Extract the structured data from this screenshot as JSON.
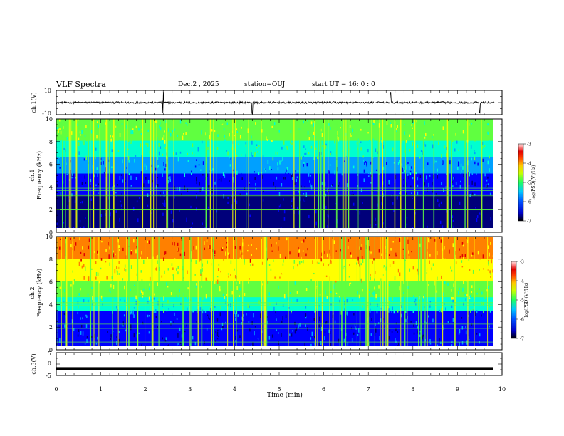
{
  "header": {
    "title": "VLF Spectra",
    "date": "Dec.2 , 2025",
    "station": "station=OUJ",
    "start": "start UT = 16: 0 : 0"
  },
  "colors": {
    "spectrogram_scale": [
      "#00007a",
      "#0000ff",
      "#00a0ff",
      "#00ffd0",
      "#60ff40",
      "#ffff00",
      "#ff8000",
      "#e00000",
      "#ffc8c8",
      "#ffffff"
    ]
  },
  "chart_data": [
    {
      "type": "line",
      "panel": "waveform-ch1",
      "ylabel": "ch.1(V)",
      "yticks": [
        "10",
        "-10"
      ],
      "ylim": [
        -10,
        10
      ],
      "xlim": [
        0,
        10
      ],
      "description_values": {
        "baseline": 0,
        "spike_times_min": [
          2.4,
          4.4,
          7.5,
          9.5
        ]
      }
    },
    {
      "type": "heatmap",
      "panel": "spectrogram-ch1",
      "ylabel_line1": "ch.1",
      "ylabel_line2": "Frequency (kHz)",
      "yticks": [
        "0",
        "2",
        "4",
        "6",
        "8",
        "10"
      ],
      "ylim": [
        0,
        10
      ],
      "xlim": [
        0,
        9.83
      ],
      "colorbar": {
        "label": "log(PSD)(V²/Hz)",
        "ticks": [
          "-3",
          "-4",
          "-5",
          "-6",
          "-7"
        ],
        "range": [
          -7,
          -3
        ]
      }
    },
    {
      "type": "heatmap",
      "panel": "spectrogram-ch2",
      "ylabel_line1": "ch.2",
      "ylabel_line2": "Frequency (kHz)",
      "yticks": [
        "0",
        "2",
        "4",
        "6",
        "8",
        "10"
      ],
      "ylim": [
        0,
        10
      ],
      "xlim": [
        0,
        9.83
      ],
      "colorbar": {
        "label": "log(PSD)(V²/Hz)",
        "ticks": [
          "-3",
          "-4",
          "-5",
          "-6",
          "-7"
        ],
        "range": [
          -7,
          -3
        ]
      }
    },
    {
      "type": "line",
      "panel": "waveform-ch3",
      "ylabel": "ch.3(V)",
      "yticks": [
        "5",
        "0",
        "-5"
      ],
      "ylim": [
        -5,
        5
      ],
      "xlim": [
        0,
        10
      ],
      "description_values": {
        "constant_level": -2
      }
    }
  ],
  "xaxis": {
    "label": "Time (min)",
    "ticks": [
      "0",
      "1",
      "2",
      "3",
      "4",
      "5",
      "6",
      "7",
      "8",
      "9",
      "10"
    ]
  }
}
